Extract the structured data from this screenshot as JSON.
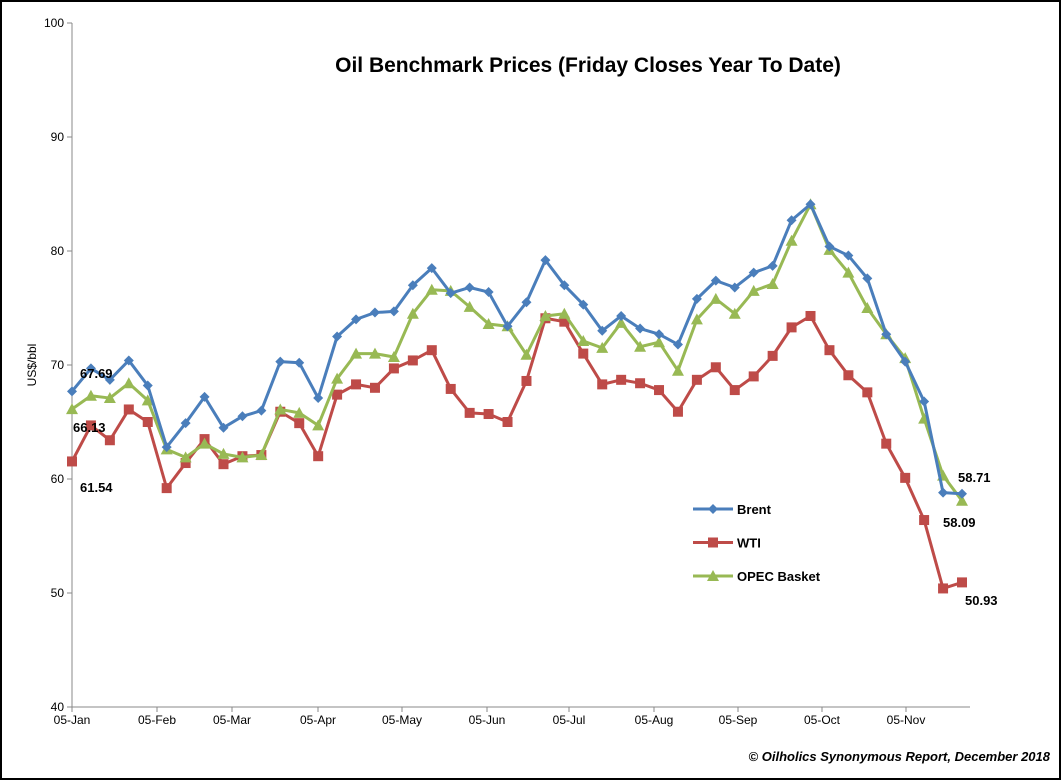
{
  "chart_data": {
    "type": "line",
    "title": "Oil Benchmark Prices (Friday Closes Year To Date)",
    "xlabel": "",
    "ylabel": "US$/bbl",
    "ylim": [
      40,
      100
    ],
    "yticks": [
      40,
      50,
      60,
      70,
      80,
      90,
      100
    ],
    "xtick_labels": [
      "05-Jan",
      "05-Feb",
      "05-Mar",
      "05-Apr",
      "05-May",
      "05-Jun",
      "05-Jul",
      "05-Aug",
      "05-Sep",
      "05-Oct",
      "05-Nov"
    ],
    "grid": false,
    "legend_position": "bottom-right",
    "x_note": "weekly Friday closes, 48 points",
    "series": [
      {
        "name": "Brent",
        "color": "#4a7ebb",
        "marker": "diamond",
        "values": [
          67.69,
          69.7,
          68.7,
          70.4,
          68.2,
          62.8,
          64.9,
          67.2,
          64.5,
          65.5,
          66.0,
          70.3,
          70.2,
          67.1,
          72.5,
          74.0,
          74.6,
          74.7,
          77.0,
          78.5,
          76.3,
          76.8,
          76.4,
          73.4,
          75.5,
          79.2,
          77.0,
          75.3,
          73.0,
          74.3,
          73.2,
          72.7,
          71.8,
          75.8,
          77.4,
          76.8,
          78.1,
          78.7,
          82.7,
          84.1,
          80.4,
          79.6,
          77.6,
          72.7,
          70.3,
          66.8,
          58.8,
          58.71
        ]
      },
      {
        "name": "WTI",
        "color": "#be4b48",
        "marker": "square",
        "values": [
          61.54,
          64.7,
          63.4,
          66.1,
          65.0,
          59.2,
          61.4,
          63.5,
          61.3,
          62.0,
          62.1,
          65.9,
          64.9,
          62.0,
          67.4,
          68.3,
          68.0,
          69.7,
          70.4,
          71.3,
          67.9,
          65.8,
          65.7,
          65.0,
          68.6,
          74.1,
          73.8,
          71.0,
          68.3,
          68.7,
          68.4,
          67.8,
          65.9,
          68.7,
          69.8,
          67.8,
          69.0,
          70.8,
          73.3,
          74.3,
          71.3,
          69.1,
          67.6,
          63.1,
          60.1,
          56.4,
          50.4,
          50.93
        ]
      },
      {
        "name": "OPEC Basket",
        "color": "#98b954",
        "marker": "triangle",
        "values": [
          66.13,
          67.3,
          67.1,
          68.4,
          66.9,
          62.6,
          61.9,
          63.1,
          62.2,
          61.9,
          62.1,
          66.1,
          65.8,
          64.7,
          68.8,
          71.0,
          71.0,
          70.7,
          74.5,
          76.6,
          76.5,
          75.1,
          73.6,
          73.4,
          70.9,
          74.3,
          74.5,
          72.1,
          71.5,
          73.7,
          71.6,
          72.0,
          69.5,
          74.0,
          75.8,
          74.5,
          76.5,
          77.1,
          80.9,
          84.1,
          80.1,
          78.1,
          75.0,
          72.7,
          70.6,
          65.3,
          60.3,
          58.09
        ]
      }
    ],
    "data_labels": {
      "brent_start": "67.69",
      "opec_start": "66.13",
      "wti_start": "61.54",
      "brent_end": "58.71",
      "opec_end": "58.09",
      "wti_end": "50.93"
    },
    "credit": "© Oilholics Synonymous Report, December 2018"
  }
}
